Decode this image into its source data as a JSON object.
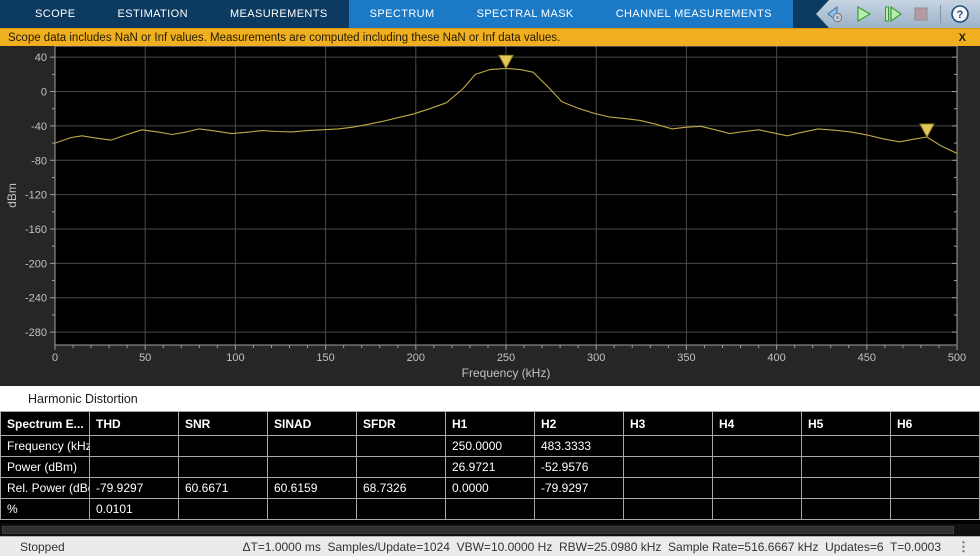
{
  "toolstrip": {
    "tabs": [
      {
        "label": "SCOPE",
        "highlighted": false
      },
      {
        "label": "ESTIMATION",
        "highlighted": false
      },
      {
        "label": "MEASUREMENTS",
        "highlighted": false
      },
      {
        "label": "SPECTRUM",
        "highlighted": true
      },
      {
        "label": "SPECTRAL MASK",
        "highlighted": true
      },
      {
        "label": "CHANNEL MEASUREMENTS",
        "highlighted": true
      }
    ],
    "toolbar_icons": [
      "stepping-options-icon",
      "run-icon",
      "step-forward-icon",
      "stop-icon",
      "divider",
      "help-icon"
    ],
    "colors": {
      "bar": "#0d3a60",
      "highlight": "#1b79c6",
      "panel": "#b6c6d7"
    }
  },
  "banner": {
    "text": "Scope data includes NaN or Inf values. Measurements are computed including these NaN or Inf data values.",
    "close_label": "X",
    "background": "#efaf20"
  },
  "chart_data": {
    "type": "line",
    "title": "",
    "xlabel": "Frequency (kHz)",
    "ylabel": "dBm",
    "xlim": [
      0,
      500
    ],
    "ylim": [
      -295,
      53
    ],
    "xticks": [
      0,
      50,
      100,
      150,
      200,
      250,
      300,
      350,
      400,
      450,
      500
    ],
    "yticks": [
      40,
      0,
      -40,
      -80,
      -120,
      -160,
      -200,
      -240,
      -280
    ],
    "x_minor_step": 10,
    "y_minor_step": 20,
    "grid": true,
    "legend": null,
    "colors": {
      "plot_bg": "#000000",
      "figure_bg": "#262626",
      "grid": "#4a4a4a",
      "axis": "#9e9e9e",
      "tick_label": "#c2c2c2",
      "line": "#c0aa45",
      "marker_fill": "#e2c85c",
      "marker_stroke": "#96801f"
    },
    "series": [
      {
        "name": "spectrum-trace",
        "x": [
          0,
          9,
          15,
          22,
          31,
          40,
          48,
          57,
          65,
          73,
          80,
          89,
          98,
          106,
          115,
          123,
          131,
          140,
          148,
          157,
          165,
          173,
          181,
          190,
          198,
          207,
          217,
          226,
          233,
          241,
          250,
          258,
          265,
          273,
          281,
          290,
          299,
          307,
          316,
          324,
          333,
          342,
          350,
          358,
          366,
          374,
          382,
          390,
          398,
          406,
          414,
          423,
          432,
          441,
          450,
          459,
          468,
          476,
          483.33,
          491,
          500
        ],
        "y": [
          -60,
          -53.5,
          -51.5,
          -54,
          -56.5,
          -50,
          -44.5,
          -47,
          -50,
          -47,
          -43.5,
          -46,
          -49,
          -47.5,
          -45.5,
          -46.5,
          -47,
          -45.5,
          -44.5,
          -43.5,
          -41.5,
          -38.5,
          -35,
          -30.5,
          -26.5,
          -20.5,
          -13,
          3,
          20,
          25.5,
          26.97,
          25.5,
          22.5,
          6,
          -12,
          -19.5,
          -25.5,
          -29.5,
          -31.5,
          -33.5,
          -38,
          -43.5,
          -41.5,
          -40.5,
          -44.5,
          -49,
          -46.5,
          -44.5,
          -48,
          -51.5,
          -47.5,
          -43.5,
          -45,
          -47,
          -50.5,
          -55,
          -58.5,
          -55.5,
          -52.96,
          -63,
          -72
        ]
      }
    ],
    "markers": [
      {
        "label": "H1",
        "x": 250.0,
        "y": 26.9721
      },
      {
        "label": "H2",
        "x": 483.3333,
        "y": -52.9576
      }
    ]
  },
  "harmonic_table": {
    "title": "Harmonic Distortion",
    "columns": [
      "Spectrum E...",
      "THD",
      "SNR",
      "SINAD",
      "SFDR",
      "H1",
      "H2",
      "H3",
      "H4",
      "H5",
      "H6"
    ],
    "rows": [
      [
        "Frequency (kHz)",
        "",
        "",
        "",
        "",
        "250.0000",
        "483.3333",
        "",
        "",
        "",
        ""
      ],
      [
        "Power (dBm)",
        "",
        "",
        "",
        "",
        "26.9721",
        "-52.9576",
        "",
        "",
        "",
        ""
      ],
      [
        "Rel. Power (dBc)",
        "-79.9297",
        "60.6671",
        "60.6159",
        "68.7326",
        "0.0000",
        "-79.9297",
        "",
        "",
        "",
        ""
      ],
      [
        "%",
        "0.0101",
        "",
        "",
        "",
        "",
        "",
        "",
        "",
        "",
        ""
      ]
    ]
  },
  "statusbar": {
    "state": "Stopped",
    "measurements": "ΔT=1.0000 ms  Samples/Update=1024  VBW=10.0000 Hz  RBW=25.0980 kHz  Sample Rate=516.6667 kHz  Updates=6  T=0.0003",
    "menu_icon": "kebab-menu-icon"
  }
}
